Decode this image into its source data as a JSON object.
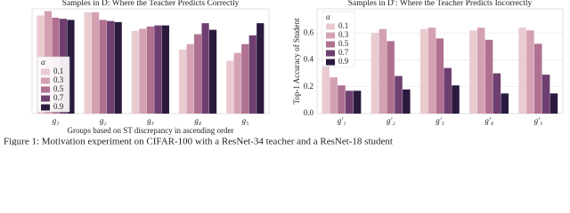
{
  "chart_data": [
    {
      "type": "bar",
      "title": "Samples in D: Where the Teacher Predicts Correctly",
      "x_label": "Groups based on ST discrepancy in ascending order",
      "categories": [
        "g₁",
        "g₂",
        "g₃",
        "g₄",
        "g₅"
      ],
      "legend_title": "α",
      "legend": "lower left",
      "ylim": [
        0,
        0.95
      ],
      "grid": true,
      "series": [
        {
          "name": "0.1",
          "color": "#e9cbd0",
          "values": [
            0.89,
            0.92,
            0.75,
            0.58,
            0.48
          ]
        },
        {
          "name": "0.3",
          "color": "#d4a1b3",
          "values": [
            0.93,
            0.92,
            0.77,
            0.63,
            0.55
          ]
        },
        {
          "name": "0.5",
          "color": "#b07191",
          "values": [
            0.87,
            0.85,
            0.79,
            0.72,
            0.63
          ]
        },
        {
          "name": "0.7",
          "color": "#6e3f70",
          "values": [
            0.86,
            0.84,
            0.8,
            0.82,
            0.71
          ]
        },
        {
          "name": "0.9",
          "color": "#2b1a3e",
          "values": [
            0.85,
            0.83,
            0.8,
            0.76,
            0.82
          ]
        }
      ]
    },
    {
      "type": "bar",
      "title": "Samples in D′: Where the Teacher Predicts Incorrectly",
      "y_label": "Top-1 Accuracy of Student",
      "categories": [
        "g′₁",
        "g′₂",
        "g′₃",
        "g′₄",
        "g′₅"
      ],
      "legend_title": "α",
      "legend": "upper left",
      "ylim": [
        0,
        0.78
      ],
      "yticks": [
        {
          "value": 0,
          "label": "0.0"
        },
        {
          "value": 0.2,
          "label": "0.2"
        },
        {
          "value": 0.4,
          "label": "0.4"
        },
        {
          "value": 0.6,
          "label": "0.6"
        }
      ],
      "grid": true,
      "series": [
        {
          "name": "0.1",
          "color": "#e9cbd0",
          "values": [
            0.37,
            0.6,
            0.63,
            0.62,
            0.64
          ]
        },
        {
          "name": "0.3",
          "color": "#d4a1b3",
          "values": [
            0.27,
            0.63,
            0.64,
            0.64,
            0.62
          ]
        },
        {
          "name": "0.5",
          "color": "#b07191",
          "values": [
            0.21,
            0.54,
            0.56,
            0.55,
            0.52
          ]
        },
        {
          "name": "0.7",
          "color": "#6e3f70",
          "values": [
            0.17,
            0.28,
            0.34,
            0.3,
            0.29
          ]
        },
        {
          "name": "0.9",
          "color": "#2b1a3e",
          "values": [
            0.17,
            0.18,
            0.21,
            0.15,
            0.15
          ]
        }
      ]
    }
  ],
  "caption": "Figure 1: Motivation experiment on CIFAR-100 with a ResNet-34 teacher and a ResNet-18 student"
}
